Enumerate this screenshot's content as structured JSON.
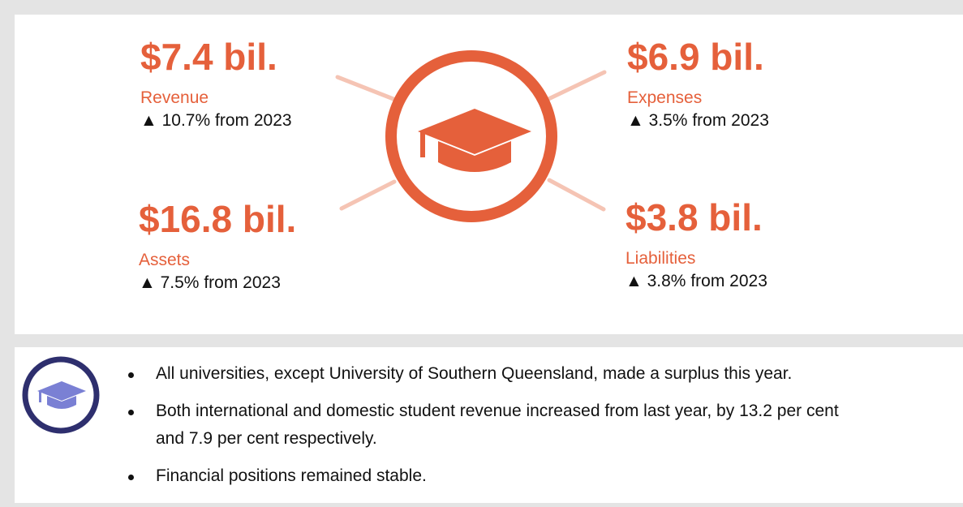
{
  "metrics": [
    {
      "value": "$7.4 bil.",
      "label": "Revenue",
      "change": "▲ 10.7% from 2023"
    },
    {
      "value": "$6.9 bil.",
      "label": "Expenses",
      "change": "▲ 3.5% from 2023"
    },
    {
      "value": "$16.8 bil.",
      "label": "Assets",
      "change": "▲ 7.5% from 2023"
    },
    {
      "value": "$3.8 bil.",
      "label": "Liabilities",
      "change": "▲ 3.8% from 2023"
    }
  ],
  "bullets": [
    "All universities, except University of Southern Queensland, made a surplus this year.",
    "Both international and domestic student revenue increased from last year, by 13.2 per cent and 7.9 per cent respectively.",
    "Financial positions remained stable."
  ]
}
